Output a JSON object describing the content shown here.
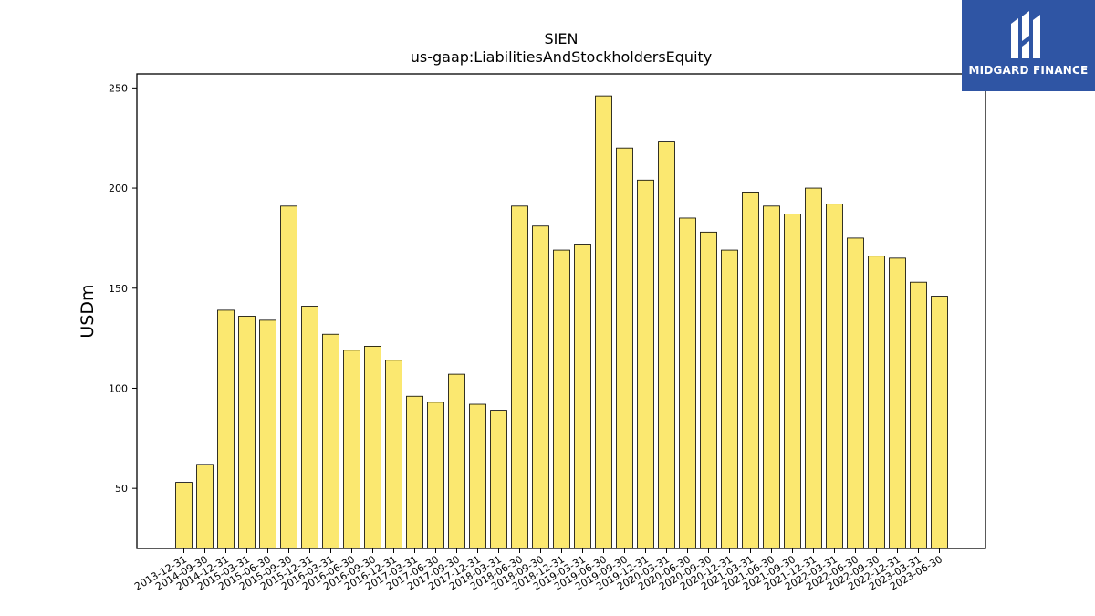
{
  "logo": {
    "text": "MIDGARD FINANCE",
    "background": "#2f55a4"
  },
  "chart_data": {
    "type": "bar",
    "title": "SIEN",
    "subtitle": "us-gaap:LiabilitiesAndStockholdersEquity",
    "ylabel": "USDm",
    "xlabel": "",
    "ylim": [
      20,
      257
    ],
    "yticks": [
      50,
      100,
      150,
      200,
      250
    ],
    "bar_color": "#fbe870",
    "bar_edge": "#000000",
    "categories": [
      "2013-12-31",
      "2014-09-30",
      "2014-12-31",
      "2015-03-31",
      "2015-06-30",
      "2015-09-30",
      "2015-12-31",
      "2016-03-31",
      "2016-06-30",
      "2016-09-30",
      "2016-12-31",
      "2017-03-31",
      "2017-06-30",
      "2017-09-30",
      "2017-12-31",
      "2018-03-31",
      "2018-06-30",
      "2018-09-30",
      "2018-12-31",
      "2019-03-31",
      "2019-06-30",
      "2019-09-30",
      "2019-12-31",
      "2020-03-31",
      "2020-06-30",
      "2020-09-30",
      "2020-12-31",
      "2021-03-31",
      "2021-06-30",
      "2021-09-30",
      "2021-12-31",
      "2022-03-31",
      "2022-06-30",
      "2022-09-30",
      "2022-12-31",
      "2023-03-31",
      "2023-06-30"
    ],
    "values": [
      53,
      62,
      139,
      136,
      134,
      191,
      141,
      127,
      119,
      121,
      114,
      96,
      93,
      107,
      92,
      89,
      191,
      181,
      169,
      172,
      246,
      220,
      204,
      223,
      185,
      178,
      169,
      198,
      191,
      187,
      200,
      192,
      175,
      166,
      165,
      153,
      146
    ]
  }
}
